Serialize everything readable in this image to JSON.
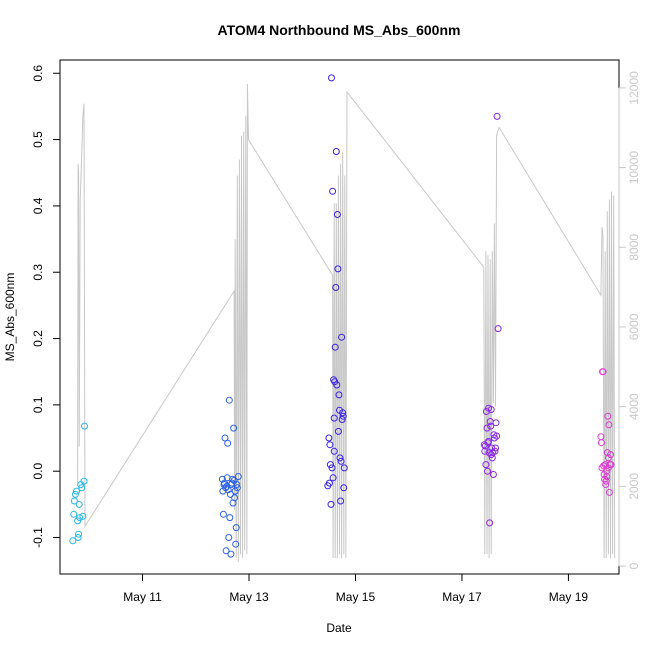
{
  "chart_data": {
    "type": "scatter",
    "title": "ATOM4 Northbound MS_Abs_600nm",
    "xlabel": "Date",
    "ylabel": "MS_Abs_600nm",
    "xlim": [
      9.45,
      19.95
    ],
    "ylim": [
      -0.155,
      0.62
    ],
    "x_ticks": [
      {
        "value": 11,
        "label": "May 11"
      },
      {
        "value": 13,
        "label": "May 13"
      },
      {
        "value": 15,
        "label": "May 15"
      },
      {
        "value": 17,
        "label": "May 17"
      },
      {
        "value": 19,
        "label": "May 19"
      }
    ],
    "y_ticks": [
      {
        "value": -0.1,
        "label": "-0.1"
      },
      {
        "value": 0.0,
        "label": "0.0"
      },
      {
        "value": 0.1,
        "label": "0.1"
      },
      {
        "value": 0.2,
        "label": "0.2"
      },
      {
        "value": 0.3,
        "label": "0.3"
      },
      {
        "value": 0.4,
        "label": "0.4"
      },
      {
        "value": 0.5,
        "label": "0.5"
      },
      {
        "value": 0.6,
        "label": "0.6"
      }
    ],
    "y2lim": [
      -200,
      12700
    ],
    "y2_ticks": [
      {
        "value": 0,
        "label": "0"
      },
      {
        "value": 2000,
        "label": "2000"
      },
      {
        "value": 4000,
        "label": "4000"
      },
      {
        "value": 6000,
        "label": "6000"
      },
      {
        "value": 8000,
        "label": "8000"
      },
      {
        "value": 10000,
        "label": "10000"
      },
      {
        "value": 12000,
        "label": "12000"
      }
    ],
    "grid": false,
    "colors": {
      "background_line": "#c8c8c8",
      "day1": "#29b6e8",
      "day2": "#2c62e6",
      "day3": "#3a22e2",
      "day4": "#8a28e6",
      "day5": "#e03ad2"
    },
    "background_line": [
      [
        9.78,
        2000
      ],
      [
        9.79,
        10100
      ],
      [
        9.8,
        9900
      ],
      [
        9.81,
        3000
      ],
      [
        9.83,
        9200
      ],
      [
        9.86,
        10400
      ],
      [
        9.88,
        11300
      ],
      [
        9.9,
        11600
      ],
      [
        9.92,
        1000
      ],
      [
        12.72,
        6900
      ],
      [
        12.73,
        1400
      ],
      [
        12.74,
        8200
      ],
      [
        12.76,
        200
      ],
      [
        12.78,
        9800
      ],
      [
        12.8,
        100
      ],
      [
        12.82,
        10200
      ],
      [
        12.84,
        300
      ],
      [
        12.86,
        10800
      ],
      [
        12.88,
        200
      ],
      [
        12.9,
        10900
      ],
      [
        12.92,
        400
      ],
      [
        12.94,
        11300
      ],
      [
        12.96,
        300
      ],
      [
        12.97,
        12100
      ],
      [
        12.99,
        10700
      ],
      [
        14.57,
        7300
      ],
      [
        14.58,
        200
      ],
      [
        14.6,
        9100
      ],
      [
        14.62,
        200
      ],
      [
        14.64,
        9100
      ],
      [
        14.66,
        200
      ],
      [
        14.68,
        9800
      ],
      [
        14.7,
        300
      ],
      [
        14.72,
        10100
      ],
      [
        14.74,
        200
      ],
      [
        14.76,
        10400
      ],
      [
        14.78,
        300
      ],
      [
        14.8,
        9800
      ],
      [
        14.82,
        200
      ],
      [
        14.84,
        11900
      ],
      [
        17.41,
        7500
      ],
      [
        17.43,
        300
      ],
      [
        17.45,
        7900
      ],
      [
        17.47,
        300
      ],
      [
        17.49,
        7800
      ],
      [
        17.51,
        200
      ],
      [
        17.53,
        7700
      ],
      [
        17.55,
        300
      ],
      [
        17.57,
        7900
      ],
      [
        17.59,
        4100
      ],
      [
        17.61,
        8600
      ],
      [
        17.63,
        4000
      ],
      [
        17.65,
        10800
      ],
      [
        17.67,
        10900
      ],
      [
        17.7,
        11000
      ],
      [
        19.61,
        6800
      ],
      [
        19.63,
        8500
      ],
      [
        19.65,
        8300
      ],
      [
        19.67,
        200
      ],
      [
        19.69,
        7900
      ],
      [
        19.71,
        200
      ],
      [
        19.73,
        8900
      ],
      [
        19.75,
        300
      ],
      [
        19.77,
        9200
      ],
      [
        19.79,
        200
      ],
      [
        19.81,
        9400
      ],
      [
        19.83,
        300
      ],
      [
        19.85,
        9300
      ],
      [
        19.87,
        200
      ]
    ],
    "series": [
      {
        "color_key": "day1",
        "points": [
          [
            9.69,
            -0.105
          ],
          [
            9.71,
            -0.065
          ],
          [
            9.72,
            -0.045
          ],
          [
            9.74,
            -0.035
          ],
          [
            9.76,
            -0.03
          ],
          [
            9.78,
            -0.075
          ],
          [
            9.79,
            -0.1
          ],
          [
            9.8,
            -0.095
          ],
          [
            9.81,
            -0.05
          ],
          [
            9.82,
            -0.07
          ],
          [
            9.84,
            -0.02
          ],
          [
            9.86,
            -0.025
          ],
          [
            9.88,
            -0.068
          ],
          [
            9.9,
            -0.015
          ],
          [
            9.91,
            0.068
          ]
        ]
      },
      {
        "color_key": "day2",
        "points": [
          [
            12.5,
            -0.012
          ],
          [
            12.51,
            -0.03
          ],
          [
            12.52,
            -0.065
          ],
          [
            12.53,
            -0.02
          ],
          [
            12.54,
            -0.018
          ],
          [
            12.55,
            0.05
          ],
          [
            12.56,
            -0.025
          ],
          [
            12.57,
            -0.12
          ],
          [
            12.58,
            -0.023
          ],
          [
            12.59,
            -0.01
          ],
          [
            12.6,
            0.042
          ],
          [
            12.61,
            -0.028
          ],
          [
            12.62,
            -0.1
          ],
          [
            12.63,
            0.107
          ],
          [
            12.64,
            -0.07
          ],
          [
            12.65,
            -0.035
          ],
          [
            12.66,
            -0.125
          ],
          [
            12.67,
            -0.02
          ],
          [
            12.68,
            -0.018
          ],
          [
            12.69,
            -0.012
          ],
          [
            12.7,
            -0.048
          ],
          [
            12.71,
            0.065
          ],
          [
            12.72,
            -0.014
          ],
          [
            12.73,
            -0.04
          ],
          [
            12.74,
            -0.03
          ],
          [
            12.75,
            -0.11
          ],
          [
            12.76,
            -0.085
          ],
          [
            12.77,
            -0.02
          ],
          [
            12.78,
            -0.025
          ],
          [
            12.8,
            -0.008
          ]
        ]
      },
      {
        "color_key": "day3",
        "points": [
          [
            14.48,
            -0.022
          ],
          [
            14.5,
            0.05
          ],
          [
            14.51,
            -0.018
          ],
          [
            14.52,
            0.04
          ],
          [
            14.53,
            0.01
          ],
          [
            14.54,
            -0.05
          ],
          [
            14.55,
            0.593
          ],
          [
            14.56,
            0.005
          ],
          [
            14.57,
            0.422
          ],
          [
            14.58,
            -0.01
          ],
          [
            14.59,
            0.138
          ],
          [
            14.6,
            0.08
          ],
          [
            14.61,
            0.135
          ],
          [
            14.62,
            0.187
          ],
          [
            14.63,
            0.277
          ],
          [
            14.64,
            0.482
          ],
          [
            14.65,
            0.13
          ],
          [
            14.66,
            0.387
          ],
          [
            14.67,
            0.305
          ],
          [
            14.68,
            0.06
          ],
          [
            14.69,
            0.115
          ],
          [
            14.7,
            0.092
          ],
          [
            14.71,
            0.02
          ],
          [
            14.72,
            -0.045
          ],
          [
            14.73,
            0.015
          ],
          [
            14.74,
            0.202
          ],
          [
            14.75,
            0.078
          ],
          [
            14.76,
            0.088
          ],
          [
            14.77,
            0.083
          ],
          [
            14.78,
            -0.025
          ],
          [
            14.79,
            0.005
          ],
          [
            14.6,
            0.03
          ]
        ]
      },
      {
        "color_key": "day4",
        "points": [
          [
            17.42,
            0.04
          ],
          [
            17.43,
            0.03
          ],
          [
            17.44,
            0.038
          ],
          [
            17.45,
            0.01
          ],
          [
            17.46,
            0.09
          ],
          [
            17.47,
            0.065
          ],
          [
            17.48,
            0.0
          ],
          [
            17.49,
            0.043
          ],
          [
            17.5,
            0.095
          ],
          [
            17.51,
            0.028
          ],
          [
            17.52,
            -0.078
          ],
          [
            17.53,
            0.075
          ],
          [
            17.54,
            0.068
          ],
          [
            17.55,
            0.093
          ],
          [
            17.56,
            0.035
          ],
          [
            17.57,
            0.02
          ],
          [
            17.58,
            0.028
          ],
          [
            17.59,
            -0.005
          ],
          [
            17.6,
            0.055
          ],
          [
            17.61,
            0.05
          ],
          [
            17.62,
            0.03
          ],
          [
            17.63,
            0.035
          ],
          [
            17.64,
            0.073
          ],
          [
            17.65,
            0.053
          ],
          [
            17.66,
            0.535
          ],
          [
            17.68,
            0.215
          ],
          [
            17.5,
            0.045
          ],
          [
            17.55,
            0.025
          ]
        ]
      },
      {
        "color_key": "day5",
        "points": [
          [
            19.61,
            0.052
          ],
          [
            19.62,
            0.043
          ],
          [
            19.63,
            0.005
          ],
          [
            19.64,
            0.15
          ],
          [
            19.65,
            0.15
          ],
          [
            19.66,
            0.008
          ],
          [
            19.67,
            -0.005
          ],
          [
            19.68,
            -0.012
          ],
          [
            19.69,
            0.01
          ],
          [
            19.7,
            -0.02
          ],
          [
            19.71,
            -0.015
          ],
          [
            19.72,
            0.0
          ],
          [
            19.73,
            0.028
          ],
          [
            19.74,
            0.083
          ],
          [
            19.75,
            0.02
          ],
          [
            19.76,
            0.07
          ],
          [
            19.77,
            -0.032
          ],
          [
            19.78,
            0.01
          ],
          [
            19.79,
            0.025
          ],
          [
            19.8,
            0.01
          ],
          [
            19.72,
            -0.008
          ],
          [
            19.75,
            0.005
          ]
        ]
      }
    ]
  }
}
